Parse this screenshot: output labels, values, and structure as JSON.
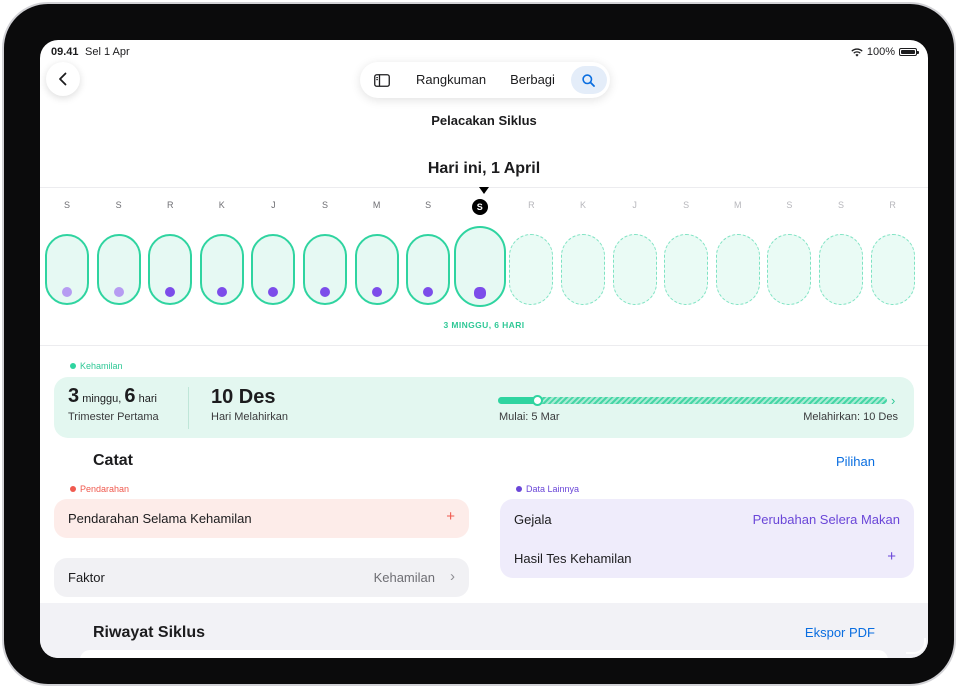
{
  "status_bar": {
    "time": "09.41",
    "date": "Sel 1 Apr",
    "battery": "100%"
  },
  "toolbar": {
    "summary": "Rangkuman",
    "share": "Berbagi"
  },
  "nav_title": "Pelacakan Siklus",
  "calendar": {
    "today_title": "Hari ini, 1 April",
    "week_label": "3 MINGGU, 6 HARI",
    "days": [
      {
        "letter": "S",
        "state": "logged",
        "dot": "light"
      },
      {
        "letter": "S",
        "state": "logged",
        "dot": "light"
      },
      {
        "letter": "R",
        "state": "logged",
        "dot": "dark"
      },
      {
        "letter": "K",
        "state": "logged",
        "dot": "dark"
      },
      {
        "letter": "J",
        "state": "logged",
        "dot": "dark"
      },
      {
        "letter": "S",
        "state": "logged",
        "dot": "dark"
      },
      {
        "letter": "M",
        "state": "logged",
        "dot": "dark"
      },
      {
        "letter": "S",
        "state": "logged",
        "dot": "dark"
      },
      {
        "letter": "S",
        "state": "today",
        "dot": "dark"
      },
      {
        "letter": "R",
        "state": "future",
        "dot": ""
      },
      {
        "letter": "K",
        "state": "future",
        "dot": ""
      },
      {
        "letter": "J",
        "state": "future",
        "dot": ""
      },
      {
        "letter": "S",
        "state": "future",
        "dot": ""
      },
      {
        "letter": "M",
        "state": "future",
        "dot": ""
      },
      {
        "letter": "S",
        "state": "future",
        "dot": ""
      },
      {
        "letter": "S",
        "state": "future",
        "dot": ""
      },
      {
        "letter": "R",
        "state": "future",
        "dot": ""
      }
    ]
  },
  "pregnancy": {
    "tag": "Kehamilan",
    "weeks": "3",
    "weeks_unit": "minggu,",
    "days": "6",
    "days_unit": "hari",
    "trimester": "Trimester Pertama",
    "due_date": "10 Des",
    "due_label": "Hari Melahirkan",
    "start_label": "Mulai: 5 Mar",
    "end_label": "Melahirkan: 10 Des",
    "progress_fraction": 0.1
  },
  "log": {
    "title": "Catat",
    "options": "Pilihan",
    "bleeding_tag": "Pendarahan",
    "bleeding_row": "Pendarahan Selama Kehamilan",
    "factor_label": "Faktor",
    "factor_value": "Kehamilan",
    "other_tag": "Data Lainnya",
    "symptoms_label": "Gejala",
    "symptoms_value": "Perubahan Selera Makan",
    "test_label": "Hasil Tes Kehamilan",
    "add_symbol": "+",
    "chevron": "›"
  },
  "history": {
    "title": "Riwayat Siklus",
    "export": "Ekspor PDF"
  },
  "colors": {
    "accent_green": "#2fd4a0",
    "accent_purple": "#7c4dea",
    "accent_red": "#f05a4f",
    "link_blue": "#0a6ee0"
  }
}
